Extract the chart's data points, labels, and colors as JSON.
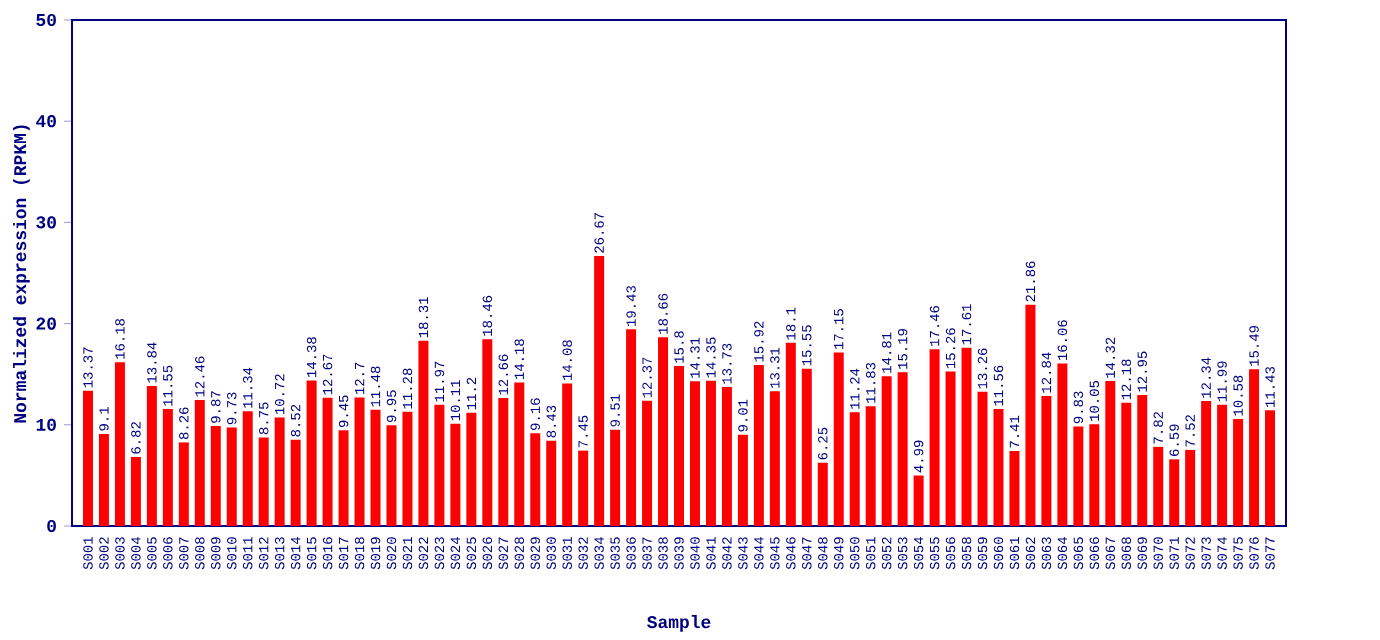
{
  "chart_data": {
    "type": "bar",
    "xlabel": "Sample",
    "ylabel": "Normalized expression (RPKM)",
    "categories": [
      "S001",
      "S002",
      "S003",
      "S004",
      "S005",
      "S006",
      "S007",
      "S008",
      "S009",
      "S010",
      "S011",
      "S012",
      "S013",
      "S014",
      "S015",
      "S016",
      "S017",
      "S018",
      "S019",
      "S020",
      "S021",
      "S022",
      "S023",
      "S024",
      "S025",
      "S026",
      "S027",
      "S028",
      "S029",
      "S030",
      "S031",
      "S032",
      "S034",
      "S035",
      "S036",
      "S037",
      "S038",
      "S039",
      "S040",
      "S041",
      "S042",
      "S043",
      "S044",
      "S045",
      "S046",
      "S047",
      "S048",
      "S049",
      "S050",
      "S051",
      "S052",
      "S053",
      "S054",
      "S055",
      "S056",
      "S058",
      "S059",
      "S060",
      "S061",
      "S062",
      "S063",
      "S064",
      "S065",
      "S066",
      "S067",
      "S068",
      "S069",
      "S070",
      "S071",
      "S072",
      "S073",
      "S074",
      "S075",
      "S076",
      "S077"
    ],
    "values": [
      13.37,
      9.1,
      16.18,
      6.82,
      13.84,
      11.55,
      8.26,
      12.46,
      9.87,
      9.73,
      11.34,
      8.75,
      10.72,
      8.52,
      14.38,
      12.67,
      9.45,
      12.7,
      11.48,
      9.95,
      11.28,
      18.31,
      11.97,
      10.11,
      11.2,
      18.46,
      12.66,
      14.18,
      9.16,
      8.43,
      14.08,
      7.45,
      26.67,
      9.51,
      19.43,
      12.37,
      18.66,
      15.8,
      14.31,
      14.35,
      13.73,
      9.01,
      15.92,
      13.31,
      18.1,
      15.55,
      6.25,
      17.15,
      11.24,
      11.83,
      14.81,
      15.19,
      4.99,
      17.46,
      15.26,
      17.61,
      13.26,
      11.56,
      7.41,
      21.86,
      12.84,
      16.06,
      9.83,
      10.05,
      14.32,
      12.18,
      12.95,
      7.82,
      6.59,
      7.52,
      12.34,
      11.99,
      10.58,
      15.49,
      11.43
    ],
    "color": "#ff0000",
    "data_labels": true,
    "ylim": [
      0,
      50
    ],
    "yticks": [
      0,
      10,
      20,
      30,
      40,
      50
    ]
  }
}
